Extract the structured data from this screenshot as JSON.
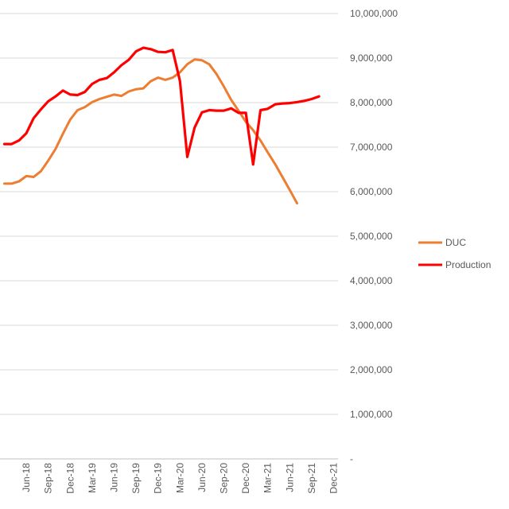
{
  "chart_data": {
    "type": "line",
    "title": "",
    "xlabel": "",
    "ylabel": "",
    "ylim": [
      0,
      10000000
    ],
    "y_ticks": [
      {
        "value": 0,
        "label": "-"
      },
      {
        "value": 1000000,
        "label": "1,000,000"
      },
      {
        "value": 2000000,
        "label": "2,000,000"
      },
      {
        "value": 3000000,
        "label": "3,000,000"
      },
      {
        "value": 4000000,
        "label": "4,000,000"
      },
      {
        "value": 5000000,
        "label": "5,000,000"
      },
      {
        "value": 6000000,
        "label": "6,000,000"
      },
      {
        "value": 7000000,
        "label": "7,000,000"
      },
      {
        "value": 8000000,
        "label": "8,000,000"
      },
      {
        "value": 9000000,
        "label": "9,000,000"
      },
      {
        "value": 10000000,
        "label": "10,000,000"
      }
    ],
    "x_ticks": [
      "Jun-18",
      "Sep-18",
      "Dec-18",
      "Mar-19",
      "Jun-19",
      "Sep-19",
      "Dec-19",
      "Mar-20",
      "Jun-20",
      "Sep-20",
      "Dec-20",
      "Mar-21",
      "Jun-21",
      "Sep-21",
      "Dec-21"
    ],
    "x": [
      "Mar-18",
      "Apr-18",
      "May-18",
      "Jun-18",
      "Jul-18",
      "Aug-18",
      "Sep-18",
      "Oct-18",
      "Nov-18",
      "Dec-18",
      "Jan-19",
      "Feb-19",
      "Mar-19",
      "Apr-19",
      "May-19",
      "Jun-19",
      "Jul-19",
      "Aug-19",
      "Sep-19",
      "Oct-19",
      "Nov-19",
      "Dec-19",
      "Jan-20",
      "Feb-20",
      "Mar-20",
      "Apr-20",
      "May-20",
      "Jun-20",
      "Jul-20",
      "Aug-20",
      "Sep-20",
      "Oct-20",
      "Nov-20",
      "Dec-20",
      "Jan-21",
      "Feb-21",
      "Mar-21",
      "Apr-21",
      "May-21",
      "Jun-21",
      "Jul-21",
      "Aug-21",
      "Sep-21",
      "Oct-21"
    ],
    "series": [
      {
        "name": "DUC",
        "color": "#ED7D31",
        "values": [
          6180000,
          6180000,
          6230000,
          6350000,
          6330000,
          6460000,
          6700000,
          6960000,
          7300000,
          7620000,
          7830000,
          7900000,
          8010000,
          8080000,
          8130000,
          8180000,
          8150000,
          8250000,
          8300000,
          8320000,
          8480000,
          8560000,
          8510000,
          8560000,
          8680000,
          8860000,
          8970000,
          8950000,
          8860000,
          8640000,
          8360000,
          8060000,
          7820000,
          7570000,
          7380000,
          7150000,
          6880000,
          6620000,
          6330000,
          6040000,
          5740000,
          null,
          null,
          null
        ]
      },
      {
        "name": "Production",
        "color": "#FF0000",
        "values": [
          7070000,
          7070000,
          7150000,
          7310000,
          7650000,
          7850000,
          8030000,
          8140000,
          8270000,
          8180000,
          8170000,
          8240000,
          8420000,
          8510000,
          8550000,
          8680000,
          8840000,
          8960000,
          9150000,
          9230000,
          9200000,
          9140000,
          9130000,
          9180000,
          8480000,
          6780000,
          7440000,
          7780000,
          7830000,
          7820000,
          7820000,
          7870000,
          7770000,
          7770000,
          6610000,
          7830000,
          7860000,
          7960000,
          7980000,
          7990000,
          8010000,
          8040000,
          8080000,
          8140000
        ]
      }
    ],
    "grid": true,
    "legend_position": "right"
  }
}
